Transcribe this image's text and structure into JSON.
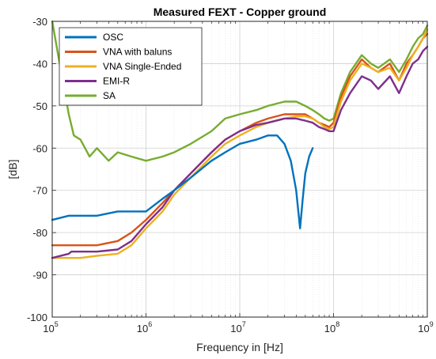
{
  "chart_data": {
    "type": "line",
    "title": "Measured FEXT - Copper ground",
    "xlabel": "Frequency in [Hz]",
    "ylabel": "[dB]",
    "x_scale": "log",
    "xlim": [
      100000,
      1000000000
    ],
    "ylim": [
      -100,
      -30
    ],
    "y_ticks": [
      -100,
      -90,
      -80,
      -70,
      -60,
      -50,
      -40,
      -30
    ],
    "y_tick_labels": [
      "-100",
      "-90",
      "-80",
      "-70",
      "-60",
      "-50",
      "-40",
      "-30"
    ],
    "x_ticks": [
      100000,
      1000000,
      10000000,
      100000000,
      1000000000
    ],
    "x_tick_labels": [
      {
        "base": "10",
        "exp": "5"
      },
      {
        "base": "10",
        "exp": "6"
      },
      {
        "base": "10",
        "exp": "7"
      },
      {
        "base": "10",
        "exp": "8"
      },
      {
        "base": "10",
        "exp": "9"
      }
    ],
    "grid": true,
    "legend_position": "top-left",
    "series": [
      {
        "name": "OSC",
        "color": "#0072BD",
        "x": [
          100000,
          150000,
          200000,
          300000,
          500000,
          700000,
          1000000,
          1500000,
          2000000,
          3000000,
          5000000,
          7000000,
          10000000,
          15000000,
          20000000,
          25000000,
          30000000,
          35000000,
          40000000,
          44000000,
          47000000,
          50000000,
          55000000,
          60000000
        ],
        "y": [
          -77,
          -76,
          -76,
          -76,
          -75,
          -75,
          -75,
          -72,
          -70,
          -67,
          -63,
          -61,
          -59,
          -58,
          -57,
          -57,
          -59,
          -63,
          -70,
          -79,
          -72,
          -66,
          -62,
          -60
        ]
      },
      {
        "name": "VNA with baluns",
        "color": "#D95319",
        "x": [
          100000,
          150000,
          200000,
          300000,
          500000,
          700000,
          1000000,
          1500000,
          2000000,
          3000000,
          5000000,
          7000000,
          10000000,
          15000000,
          20000000,
          30000000,
          40000000,
          50000000,
          60000000,
          70000000,
          80000000,
          90000000,
          100000000,
          120000000,
          150000000,
          200000000,
          250000000,
          300000000,
          400000000,
          500000000,
          600000000,
          700000000,
          800000000,
          900000000,
          1000000000
        ],
        "y": [
          -83,
          -83,
          -83,
          -83,
          -82,
          -80,
          -77,
          -73,
          -70,
          -66,
          -61,
          -58,
          -56,
          -54,
          -53,
          -52,
          -52,
          -52,
          -53,
          -54,
          -54.5,
          -55,
          -54,
          -48,
          -43,
          -39,
          -41,
          -42,
          -40,
          -44,
          -40,
          -38,
          -36,
          -34,
          -33
        ]
      },
      {
        "name": "VNA Single-Ended",
        "color": "#EDB120",
        "x": [
          100000,
          150000,
          200000,
          300000,
          500000,
          700000,
          1000000,
          1500000,
          2000000,
          3000000,
          5000000,
          7000000,
          10000000,
          15000000,
          20000000,
          30000000,
          40000000,
          50000000,
          60000000,
          70000000,
          80000000,
          90000000,
          100000000,
          120000000,
          150000000,
          200000000,
          250000000,
          300000000,
          400000000,
          500000000,
          600000000,
          700000000,
          800000000,
          900000000,
          1000000000
        ],
        "y": [
          -86,
          -86,
          -86,
          -85.5,
          -85,
          -83,
          -79,
          -75,
          -71,
          -67,
          -62,
          -59,
          -57,
          -55,
          -54,
          -53,
          -52.5,
          -52.5,
          -53,
          -54,
          -55,
          -55.5,
          -55,
          -49,
          -44,
          -40,
          -41,
          -42,
          -41,
          -44,
          -41,
          -38,
          -36,
          -34,
          -32
        ]
      },
      {
        "name": "EMI-R",
        "color": "#7E2F8E",
        "x": [
          100000,
          150000,
          160000,
          200000,
          300000,
          500000,
          700000,
          1000000,
          1500000,
          2000000,
          3000000,
          5000000,
          7000000,
          10000000,
          15000000,
          20000000,
          30000000,
          40000000,
          50000000,
          60000000,
          70000000,
          80000000,
          90000000,
          100000000,
          120000000,
          150000000,
          200000000,
          250000000,
          300000000,
          400000000,
          500000000,
          600000000,
          700000000,
          800000000,
          900000000,
          1000000000
        ],
        "y": [
          -86,
          -85,
          -84.5,
          -84.5,
          -84.5,
          -84,
          -82,
          -78,
          -74,
          -70,
          -66,
          -61,
          -58,
          -56,
          -54.5,
          -54,
          -53,
          -53,
          -53.5,
          -54,
          -55,
          -55.5,
          -56,
          -56,
          -51,
          -47,
          -43,
          -44,
          -46,
          -43,
          -47,
          -43,
          -40,
          -39,
          -37,
          -36
        ]
      },
      {
        "name": "SA",
        "color": "#77AC30",
        "x": [
          100000,
          120000,
          150000,
          170000,
          200000,
          250000,
          300000,
          400000,
          500000,
          700000,
          1000000,
          1500000,
          2000000,
          3000000,
          5000000,
          7000000,
          10000000,
          15000000,
          20000000,
          30000000,
          40000000,
          50000000,
          60000000,
          70000000,
          80000000,
          90000000,
          100000000,
          120000000,
          150000000,
          200000000,
          250000000,
          300000000,
          400000000,
          500000000,
          600000000,
          700000000,
          800000000,
          900000000,
          1000000000
        ],
        "y": [
          -30,
          -40,
          -52,
          -57,
          -58,
          -62,
          -60,
          -63,
          -61,
          -62,
          -63,
          -62,
          -61,
          -59,
          -56,
          -53,
          -52,
          -51,
          -50,
          -49,
          -49,
          -50,
          -51,
          -52,
          -53,
          -53.5,
          -53,
          -47,
          -42,
          -38,
          -40,
          -41,
          -39,
          -42,
          -39,
          -36,
          -34,
          -33,
          -31
        ]
      }
    ]
  }
}
